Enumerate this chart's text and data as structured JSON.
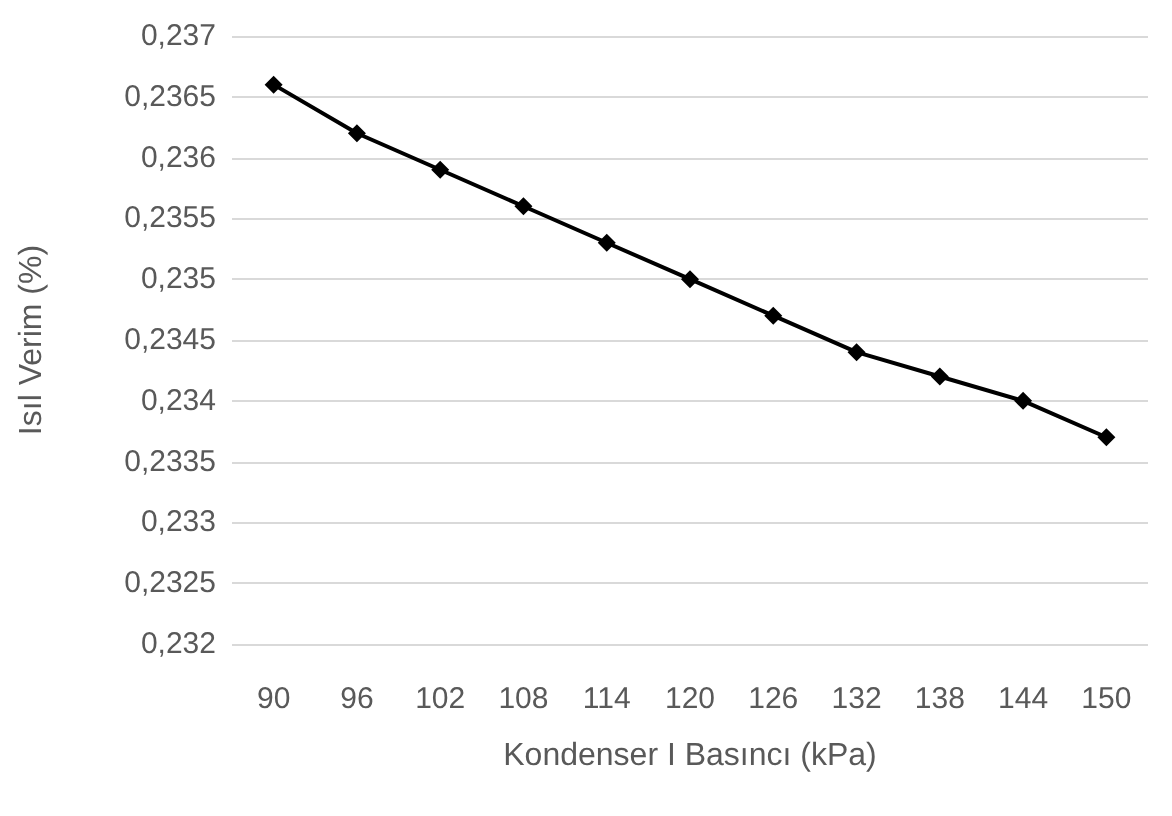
{
  "chart_data": {
    "type": "line",
    "xlabel": "Kondenser I Basıncı (kPa)",
    "ylabel": "Isıl Verim (%)",
    "categories": [
      "90",
      "96",
      "102",
      "108",
      "114",
      "120",
      "126",
      "132",
      "138",
      "144",
      "150"
    ],
    "series": [
      {
        "color": "#000000",
        "values": [
          0.2366,
          0.2362,
          0.2359,
          0.2356,
          0.2353,
          0.235,
          0.2347,
          0.2344,
          0.2342,
          0.234,
          0.2337
        ]
      }
    ],
    "ylim": [
      0.232,
      0.237
    ],
    "yticks": [
      {
        "value": 0.232,
        "label": "0,232"
      },
      {
        "value": 0.2325,
        "label": "0,2325"
      },
      {
        "value": 0.233,
        "label": "0,233"
      },
      {
        "value": 0.2335,
        "label": "0,2335"
      },
      {
        "value": 0.234,
        "label": "0,234"
      },
      {
        "value": 0.2345,
        "label": "0,2345"
      },
      {
        "value": 0.235,
        "label": "0,235"
      },
      {
        "value": 0.2355,
        "label": "0,2355"
      },
      {
        "value": 0.236,
        "label": "0,236"
      },
      {
        "value": 0.2365,
        "label": "0,2365"
      },
      {
        "value": 0.237,
        "label": "0,237"
      }
    ],
    "grid": "y",
    "marker": "diamond",
    "line_style": "solid"
  }
}
